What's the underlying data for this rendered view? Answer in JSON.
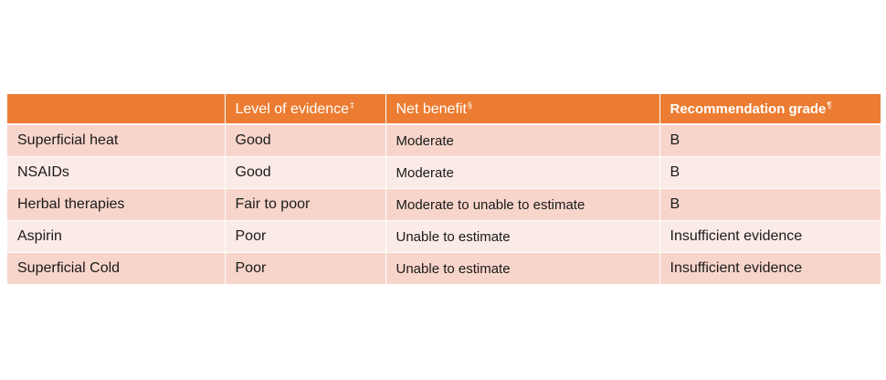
{
  "table": {
    "headers": [
      {
        "label": "",
        "mark": ""
      },
      {
        "label": "Level of evidence",
        "mark": "‡"
      },
      {
        "label": "Net benefit",
        "mark": "§"
      },
      {
        "label": "Recommendation grade",
        "mark": "¶"
      }
    ],
    "rows": [
      {
        "treatment": "Superficial heat",
        "level": "Good",
        "benefit": "Moderate",
        "grade": "B"
      },
      {
        "treatment": "NSAIDs",
        "level": "Good",
        "benefit": "Moderate",
        "grade": "B"
      },
      {
        "treatment": "Herbal therapies",
        "level": "Fair to poor",
        "benefit": "Moderate to unable to estimate",
        "grade": "B"
      },
      {
        "treatment": "Aspirin",
        "level": "Poor",
        "benefit": "Unable to estimate",
        "grade": "Insufficient evidence"
      },
      {
        "treatment": "Superficial Cold",
        "level": "Poor",
        "benefit": "Unable to estimate",
        "grade": "Insufficient evidence"
      }
    ]
  },
  "colors": {
    "header": "#ec7c31",
    "row_odd": "#f8d5cb",
    "row_even": "#fbebe6"
  }
}
